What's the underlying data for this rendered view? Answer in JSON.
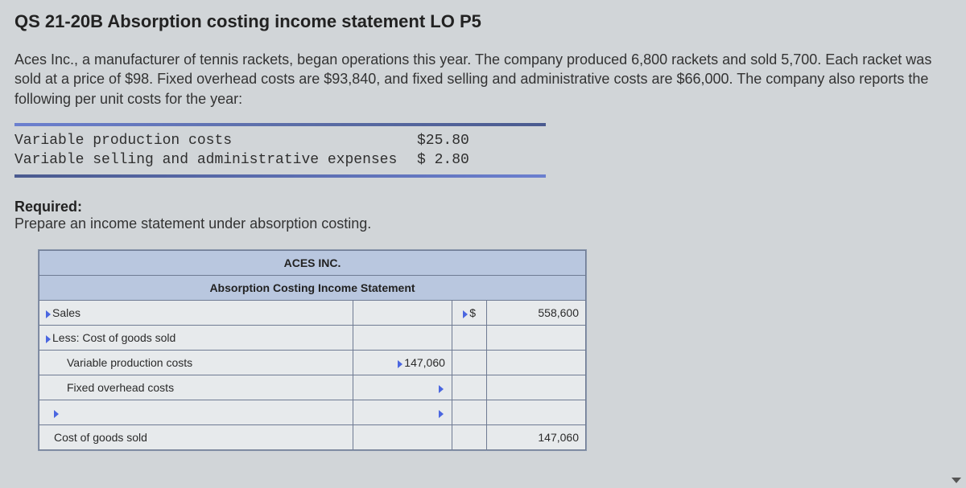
{
  "heading": "QS 21-20B Absorption costing income statement LO P5",
  "problem_text": "Aces Inc., a manufacturer of tennis rackets, began operations this year. The company produced 6,800 rackets and sold 5,700. Each racket was sold at a price of $98. Fixed overhead costs are $93,840, and fixed selling and administrative costs are $66,000. The company also reports the following per unit costs for the year:",
  "costs": {
    "rows": [
      {
        "label": "Variable production costs",
        "value": "$25.80"
      },
      {
        "label": "Variable selling and administrative expenses",
        "value": "$ 2.80"
      }
    ]
  },
  "required_label": "Required:",
  "required_text": "Prepare an income statement under absorption costing.",
  "statement": {
    "company": "ACES INC.",
    "title": "Absorption Costing Income Statement",
    "rows": {
      "sales_label": "Sales",
      "sales_sym": "$",
      "sales_amount": "558,600",
      "less_cogs_label": "Less: Cost of goods sold",
      "var_prod_label": "Variable production costs",
      "var_prod_amount": "147,060",
      "fixed_oh_label": "Fixed overhead costs",
      "cogs_label": "Cost of goods sold",
      "cogs_amount": "147,060"
    }
  },
  "colors": {
    "page_bg": "#d1d5d8",
    "header_bg": "#b9c7df",
    "grid_border": "#6f7b93",
    "marker": "#4a66e0"
  }
}
